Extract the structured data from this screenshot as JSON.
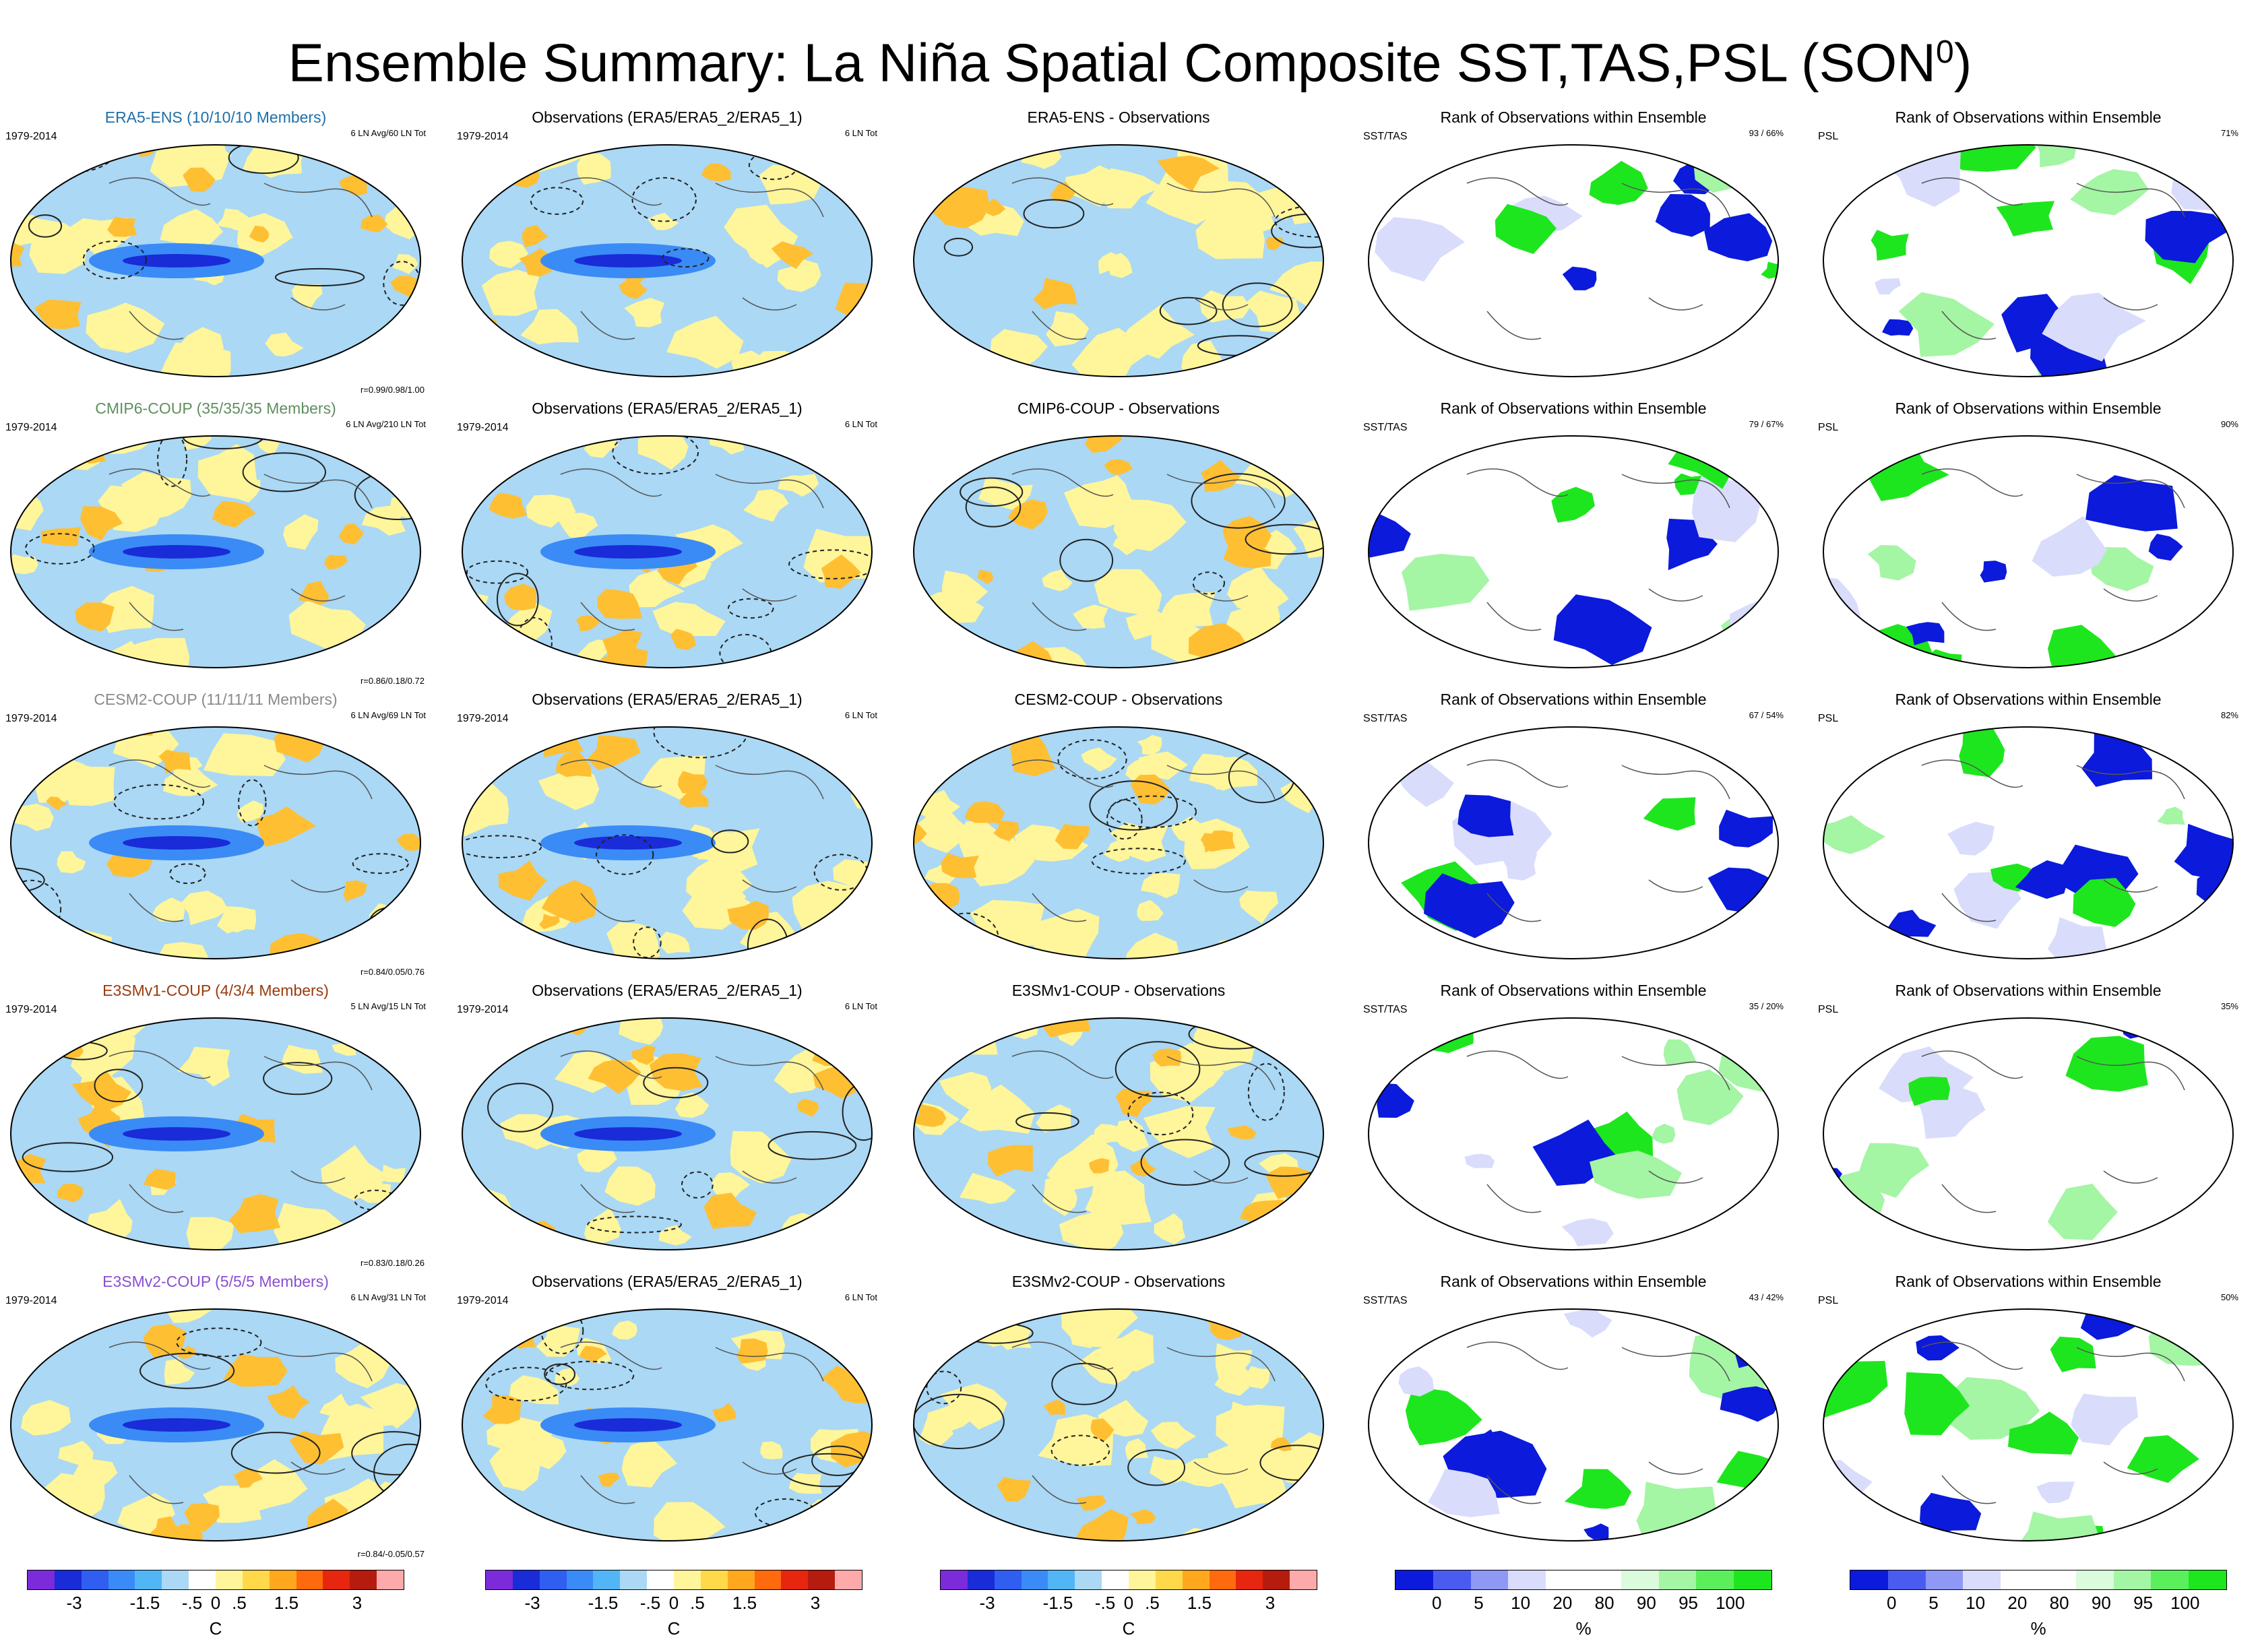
{
  "title": "Ensemble Summary: La Niña Spatial Composite SST,TAS,PSL (SON",
  "title_sup": "0",
  "title_close": ")",
  "colors": {
    "anom": [
      "#7b2bd9",
      "#1a2bd8",
      "#2f5ef0",
      "#3a8bf5",
      "#52b5f5",
      "#aad8f5",
      "#ffffff",
      "#fff59a",
      "#ffd94a",
      "#ffa81e",
      "#ff6a0e",
      "#e6260e",
      "#b51c0e",
      "#ffaaaa"
    ],
    "rank": [
      "#0b1adb",
      "#4a5cf0",
      "#8f98f5",
      "#d9dcfb",
      "#ffffff",
      "#ffffff",
      "#dcfadc",
      "#a4f5a4",
      "#5cef5c",
      "#1ee61e"
    ],
    "region_colors": {
      "blue": "#aad8f5",
      "yellow": "#fff59a",
      "orange": "#ffbf33",
      "strong_blue": "#3a8bf5",
      "rank_blue": "#0b1adb",
      "rank_green": "#1ee61e",
      "rank_lav": "#d9dcfb",
      "rank_pale": "#a4f5a4"
    }
  },
  "rows": [
    {
      "model_title": "ERA5-ENS (10/10/10 Members)",
      "model_color": "#1f6fa8",
      "years": "1979-2014",
      "avg": "6 LN Avg/60 LN Tot",
      "corr": "r=0.99/0.98/1.00",
      "obs_title": "Observations (ERA5/ERA5_2/ERA5_1)",
      "obs_years": "1979-2014",
      "obs_tot": "6 LN Tot",
      "diff_title": "ERA5-ENS - Observations",
      "rank_title": "Rank of Observations within Ensemble",
      "sst_label": "SST/TAS",
      "sst_pct": "93 /  66%",
      "psl_title": "Rank of Observations within Ensemble",
      "psl_label": "PSL",
      "psl_pct": "71%"
    },
    {
      "model_title": "CMIP6-COUP (35/35/35 Members)",
      "model_color": "#5f8f5f",
      "years": "1979-2014",
      "avg": "6 LN Avg/210 LN Tot",
      "corr": "r=0.86/0.18/0.72",
      "obs_title": "Observations (ERA5/ERA5_2/ERA5_1)",
      "obs_years": "1979-2014",
      "obs_tot": "6 LN Tot",
      "diff_title": "CMIP6-COUP - Observations",
      "rank_title": "Rank of Observations within Ensemble",
      "sst_label": "SST/TAS",
      "sst_pct": "79 /  67%",
      "psl_title": "Rank of Observations within Ensemble",
      "psl_label": "PSL",
      "psl_pct": "90%"
    },
    {
      "model_title": "CESM2-COUP (11/11/11 Members)",
      "model_color": "#8a8a8a",
      "years": "1979-2014",
      "avg": "6 LN Avg/69 LN Tot",
      "corr": "r=0.84/0.05/0.76",
      "obs_title": "Observations (ERA5/ERA5_2/ERA5_1)",
      "obs_years": "1979-2014",
      "obs_tot": "6 LN Tot",
      "diff_title": "CESM2-COUP - Observations",
      "rank_title": "Rank of Observations within Ensemble",
      "sst_label": "SST/TAS",
      "sst_pct": "67 /  54%",
      "psl_title": "Rank of Observations within Ensemble",
      "psl_label": "PSL",
      "psl_pct": "82%"
    },
    {
      "model_title": "E3SMv1-COUP (4/3/4 Members)",
      "model_color": "#9a3b0e",
      "years": "1979-2014",
      "avg": "5 LN Avg/15 LN Tot",
      "corr": "r=0.83/0.18/0.26",
      "obs_title": "Observations (ERA5/ERA5_2/ERA5_1)",
      "obs_years": "1979-2014",
      "obs_tot": "6 LN Tot",
      "diff_title": "E3SMv1-COUP - Observations",
      "rank_title": "Rank of Observations within Ensemble",
      "sst_label": "SST/TAS",
      "sst_pct": "35 /  20%",
      "psl_title": "Rank of Observations within Ensemble",
      "psl_label": "PSL",
      "psl_pct": "35%"
    },
    {
      "model_title": "E3SMv2-COUP (5/5/5 Members)",
      "model_color": "#8a4fd0",
      "years": "1979-2014",
      "avg": "6 LN Avg/31 LN Tot",
      "corr": "r=0.84/-0.05/0.57",
      "obs_title": "Observations (ERA5/ERA5_2/ERA5_1)",
      "obs_years": "1979-2014",
      "obs_tot": "6 LN Tot",
      "diff_title": "E3SMv2-COUP - Observations",
      "rank_title": "Rank of Observations within Ensemble",
      "sst_label": "SST/TAS",
      "sst_pct": "43 /  42%",
      "psl_title": "Rank of Observations within Ensemble",
      "psl_label": "PSL",
      "psl_pct": "50%"
    }
  ],
  "chart_data": [
    {
      "type": "heatmap",
      "title": "Ensemble Summary: La Niña Spatial Composite SST,TAS,PSL (SON0)",
      "panel_kinds": [
        "ensemble composite",
        "observations composite",
        "ensemble minus observations",
        "rank SST/TAS",
        "rank PSL"
      ],
      "anomaly_colorbar": {
        "unit": "C",
        "tick_labels": [
          "-3",
          "-1.5",
          "-.5",
          "0",
          ".5",
          "1.5",
          "3"
        ],
        "tick_values": [
          -3,
          -1.5,
          -0.5,
          0,
          0.5,
          1.5,
          3
        ],
        "range": [
          -4,
          4
        ]
      },
      "rank_colorbar": {
        "unit": "%",
        "tick_labels": [
          "0",
          "5",
          "10",
          "20",
          "80",
          "90",
          "95",
          "100"
        ],
        "tick_values": [
          0,
          5,
          10,
          20,
          80,
          90,
          95,
          100
        ]
      },
      "rank_sst_pct": [
        [
          93,
          66
        ],
        [
          79,
          67
        ],
        [
          67,
          54
        ],
        [
          35,
          20
        ],
        [
          43,
          42
        ]
      ],
      "rank_psl_pct": [
        71,
        90,
        82,
        35,
        50
      ],
      "correlations": [
        [
          0.99,
          0.98,
          1.0
        ],
        [
          0.86,
          0.18,
          0.72
        ],
        [
          0.84,
          0.05,
          0.76
        ],
        [
          0.83,
          0.18,
          0.26
        ],
        [
          0.84,
          -0.05,
          0.57
        ]
      ]
    }
  ],
  "colorbars": [
    {
      "unit": "C",
      "ticks": [
        {
          "label": "-3",
          "value": -3
        },
        {
          "label": "-1.5",
          "value": -1.5
        },
        {
          "label": "-.5",
          "value": -0.5
        },
        {
          "label": "0",
          "value": 0
        },
        {
          "label": ".5",
          "value": 0.5
        },
        {
          "label": "1.5",
          "value": 1.5
        },
        {
          "label": "3",
          "value": 3
        }
      ]
    },
    {
      "unit": "C",
      "ticks": [
        {
          "label": "-3",
          "value": -3
        },
        {
          "label": "-1.5",
          "value": -1.5
        },
        {
          "label": "-.5",
          "value": -0.5
        },
        {
          "label": "0",
          "value": 0
        },
        {
          "label": ".5",
          "value": 0.5
        },
        {
          "label": "1.5",
          "value": 1.5
        },
        {
          "label": "3",
          "value": 3
        }
      ]
    },
    {
      "unit": "C",
      "ticks": [
        {
          "label": "-3",
          "value": -3
        },
        {
          "label": "-1.5",
          "value": -1.5
        },
        {
          "label": "-.5",
          "value": -0.5
        },
        {
          "label": "0",
          "value": 0
        },
        {
          "label": ".5",
          "value": 0.5
        },
        {
          "label": "1.5",
          "value": 1.5
        },
        {
          "label": "3",
          "value": 3
        }
      ]
    },
    {
      "unit": "%",
      "ticks": [
        {
          "label": "0",
          "value": 0
        },
        {
          "label": "5",
          "value": 5
        },
        {
          "label": "10",
          "value": 10
        },
        {
          "label": "20",
          "value": 20
        },
        {
          "label": "80",
          "value": 80
        },
        {
          "label": "90",
          "value": 90
        },
        {
          "label": "95",
          "value": 95
        },
        {
          "label": "100",
          "value": 100
        }
      ]
    },
    {
      "unit": "%",
      "ticks": [
        {
          "label": "0",
          "value": 0
        },
        {
          "label": "5",
          "value": 5
        },
        {
          "label": "10",
          "value": 10
        },
        {
          "label": "20",
          "value": 20
        },
        {
          "label": "80",
          "value": 80
        },
        {
          "label": "90",
          "value": 90
        },
        {
          "label": "95",
          "value": 95
        },
        {
          "label": "100",
          "value": 100
        }
      ]
    }
  ]
}
